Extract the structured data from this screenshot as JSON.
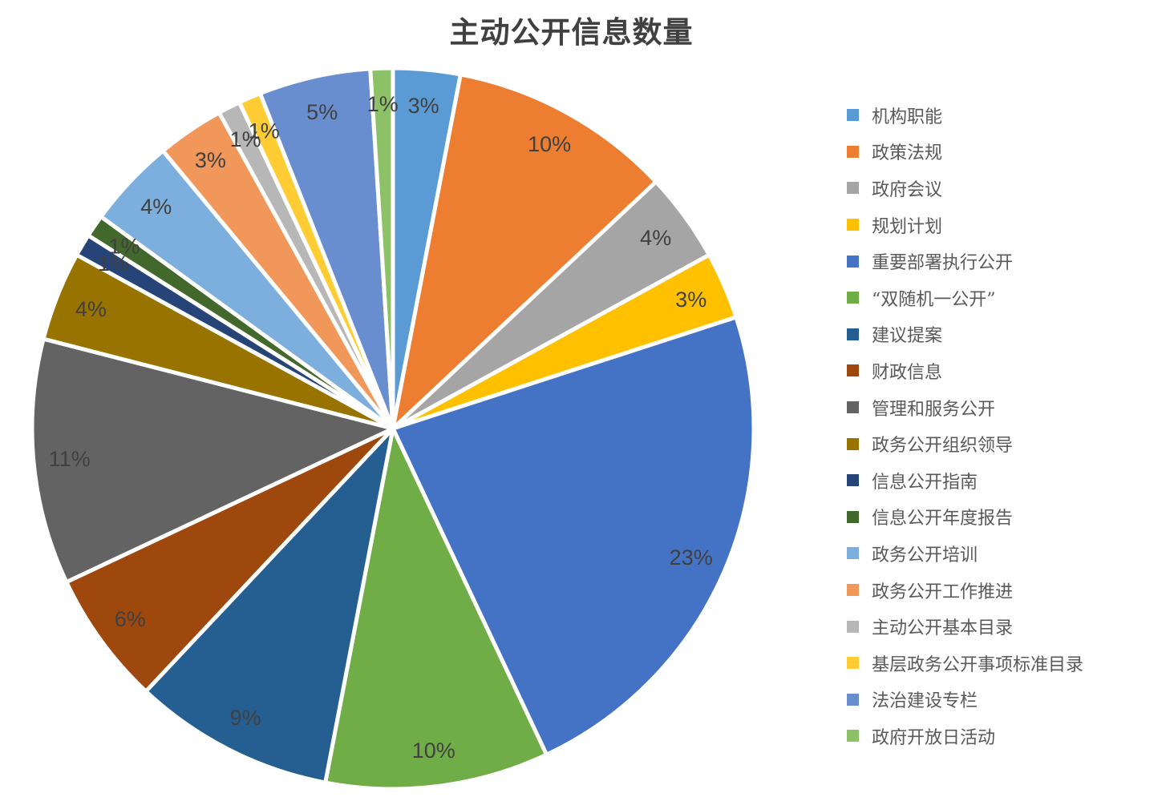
{
  "title": "主动公开信息数量",
  "colors": {
    "background": "#FFFFFF",
    "title_text": "#404040",
    "slice_label_text": "#404040",
    "legend_text": "#595959",
    "slice_border": "#FFFFFF"
  },
  "chart_data": {
    "type": "pie",
    "title": "主动公开信息数量",
    "legend_position": "right",
    "label_position": "inside-end",
    "label_format": "percent",
    "start_angle_deg": 0,
    "direction": "clockwise",
    "categories": [
      "机构职能",
      "政策法规",
      "政府会议",
      "规划计划",
      "重要部署执行公开",
      "“双随机一公开”",
      "建议提案",
      "财政信息",
      "管理和服务公开",
      "政务公开组织领导",
      "信息公开指南",
      "信息公开年度报告",
      "政务公开培训",
      "政务公开工作推进",
      "主动公开基本目录",
      "基层政务公开事项标准目录",
      "法治建设专栏",
      "政府开放日活动"
    ],
    "values": [
      3,
      10,
      4,
      3,
      23,
      10,
      9,
      6,
      11,
      4,
      1,
      1,
      4,
      3,
      1,
      1,
      5,
      1
    ],
    "slices": [
      {
        "name": "机构职能",
        "percent": 3,
        "label": "3%",
        "color": "#5B9BD5"
      },
      {
        "name": "政策法规",
        "percent": 10,
        "label": "10%",
        "color": "#ED7D31"
      },
      {
        "name": "政府会议",
        "percent": 4,
        "label": "4%",
        "color": "#A5A5A5"
      },
      {
        "name": "规划计划",
        "percent": 3,
        "label": "3%",
        "color": "#FFC000"
      },
      {
        "name": "重要部署执行公开",
        "percent": 23,
        "label": "23%",
        "color": "#4472C4"
      },
      {
        "name": "“双随机一公开”",
        "percent": 10,
        "label": "10%",
        "color": "#70AD47"
      },
      {
        "name": "建议提案",
        "percent": 9,
        "label": "9%",
        "color": "#255E91"
      },
      {
        "name": "财政信息",
        "percent": 6,
        "label": "6%",
        "color": "#9E480E"
      },
      {
        "name": "管理和服务公开",
        "percent": 11,
        "label": "11%",
        "color": "#636363"
      },
      {
        "name": "政务公开组织领导",
        "percent": 4,
        "label": "4%",
        "color": "#997300"
      },
      {
        "name": "信息公开指南",
        "percent": 1,
        "label": "1%",
        "color": "#264478"
      },
      {
        "name": "信息公开年度报告",
        "percent": 1,
        "label": "1%",
        "color": "#43682B"
      },
      {
        "name": "政务公开培训",
        "percent": 4,
        "label": "4%",
        "color": "#7CAFDD"
      },
      {
        "name": "政务公开工作推进",
        "percent": 3,
        "label": "3%",
        "color": "#F1975A"
      },
      {
        "name": "主动公开基本目录",
        "percent": 1,
        "label": "1%",
        "color": "#B7B7B7"
      },
      {
        "name": "基层政务公开事项标准目录",
        "percent": 1,
        "label": "1%",
        "color": "#FFCD33"
      },
      {
        "name": "法治建设专栏",
        "percent": 5,
        "label": "5%",
        "color": "#698ED0"
      },
      {
        "name": "政府开放日活动",
        "percent": 1,
        "label": "1%",
        "color": "#8CC168"
      }
    ]
  }
}
